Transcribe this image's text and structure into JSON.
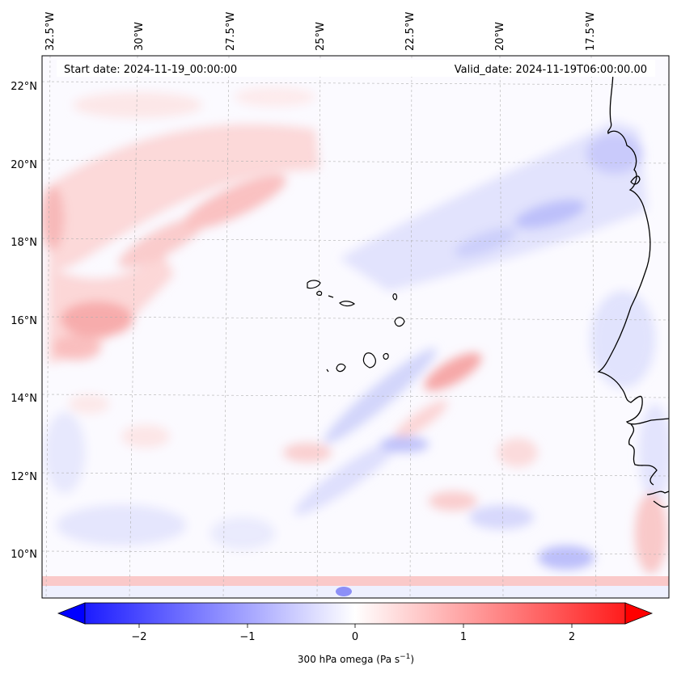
{
  "header": {
    "start_date": "Start date: 2024-11-19_00:00:00",
    "valid_date": "Valid_date: 2024-11-19T06:00:00.00"
  },
  "axes": {
    "longitude_labels": [
      "32.5°W",
      "30°W",
      "27.5°W",
      "25°W",
      "22.5°W",
      "20°W",
      "17.5°W"
    ],
    "latitude_labels": [
      "22°N",
      "20°N",
      "18°N",
      "16°N",
      "14°N",
      "12°N",
      "10°N"
    ]
  },
  "colorbar": {
    "label_main": "300 hPa omega (Pa s",
    "label_sup": "−1",
    "label_close": ")",
    "ticks": [
      "−2",
      "−1",
      "0",
      "1",
      "2"
    ],
    "min": -2.75,
    "max": 2.75,
    "extend": "both",
    "colormap": "bwr",
    "low_color": "#0000ff",
    "mid_color": "#ffffff",
    "high_color": "#ff0000"
  },
  "map": {
    "gridlines": "dashed",
    "coastline_color": "#000000",
    "features": [
      "Cape Verde islands",
      "West African coast"
    ]
  }
}
